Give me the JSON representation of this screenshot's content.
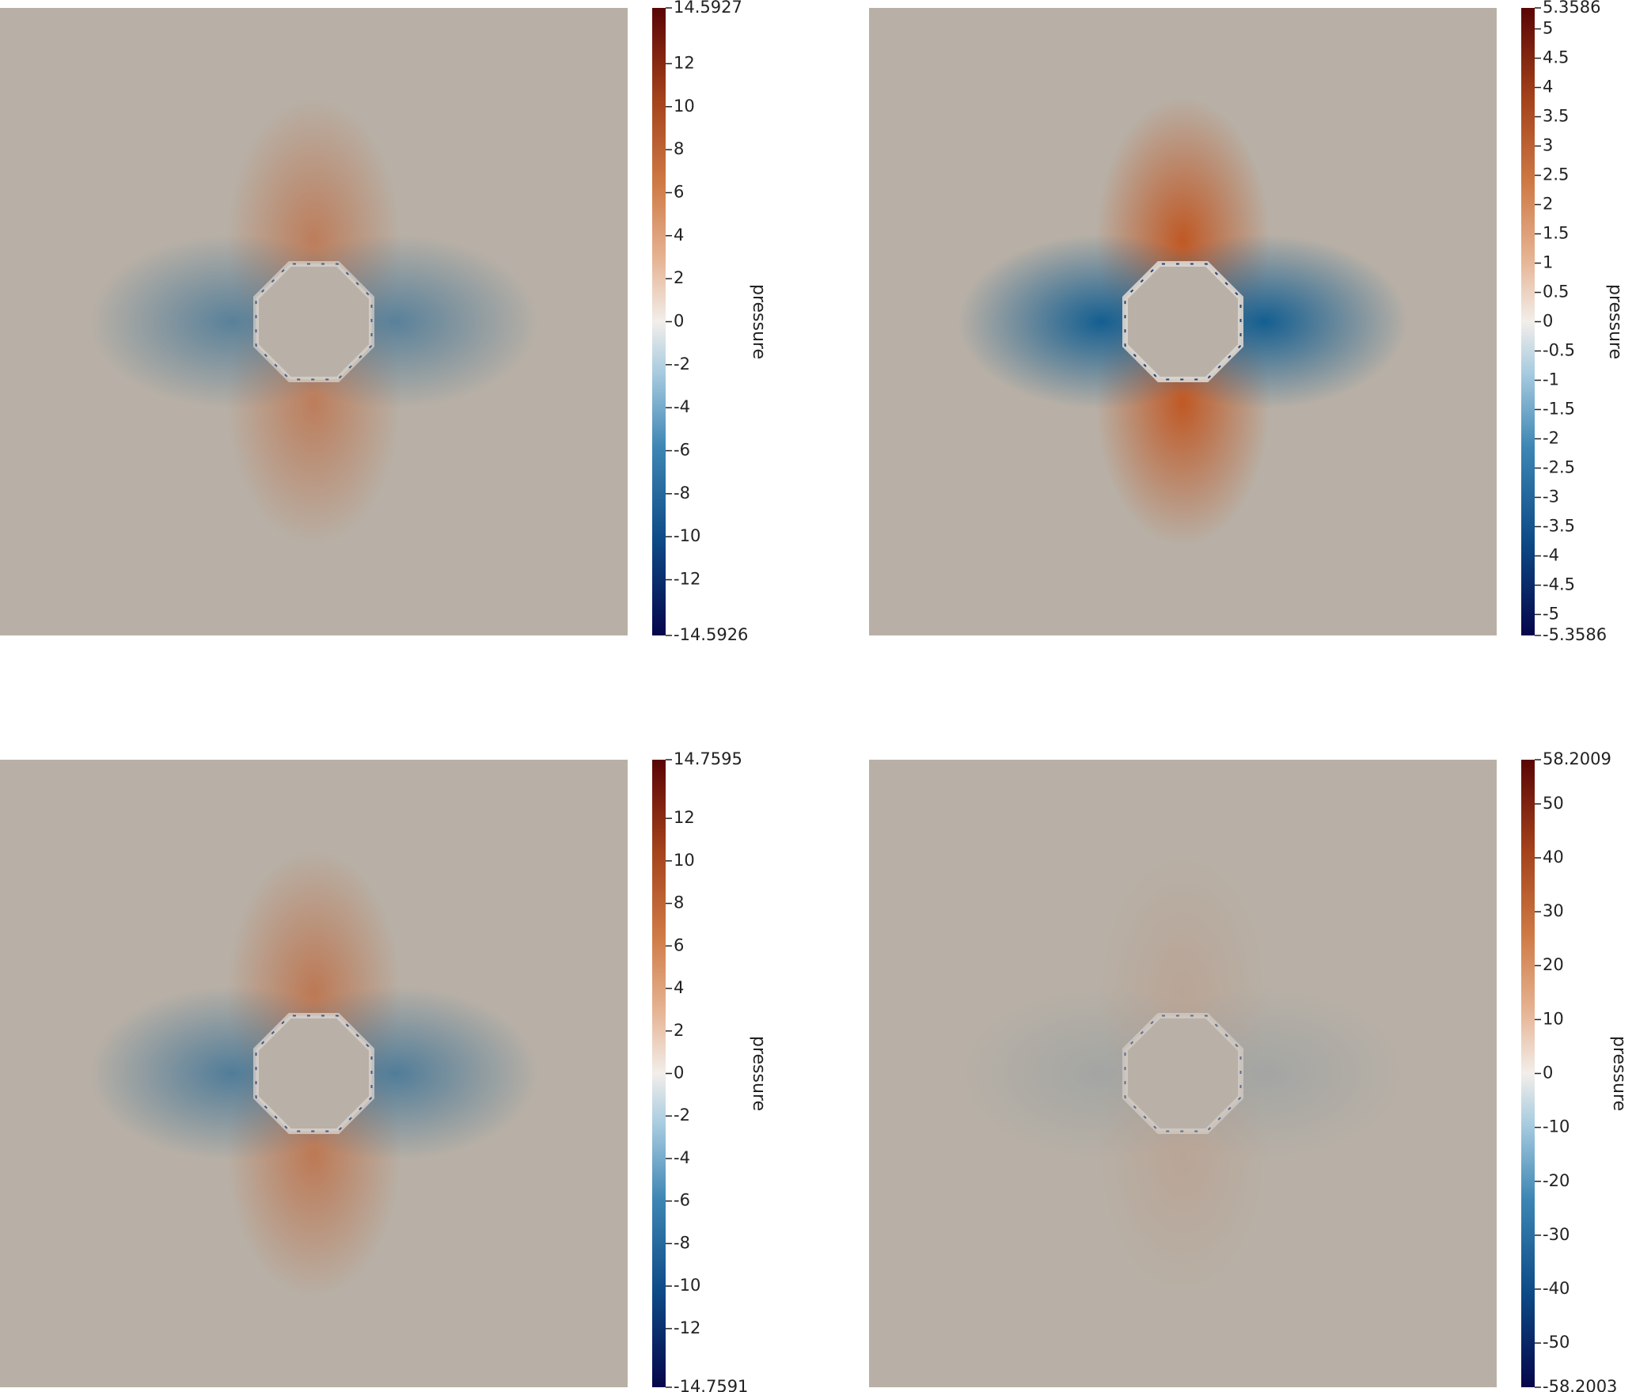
{
  "panels": [
    {
      "colorbar": {
        "title": "pressure",
        "max": 14.5927,
        "min": -14.5926,
        "ticks": [
          12,
          10,
          8,
          6,
          4,
          2,
          0,
          -2,
          -4,
          -6,
          -8,
          -10,
          -12
        ]
      }
    },
    {
      "colorbar": {
        "title": "pressure",
        "max": 5.3586,
        "min": -5.3586,
        "ticks": [
          5,
          4.5,
          4,
          3.5,
          3,
          2.5,
          2,
          1.5,
          1,
          0.5,
          0,
          -0.5,
          -1,
          -1.5,
          -2,
          -2.5,
          -3,
          -3.5,
          -4,
          -4.5,
          -5
        ]
      }
    },
    {
      "colorbar": {
        "title": "pressure",
        "max": 14.7595,
        "min": -14.7591,
        "ticks": [
          12,
          10,
          8,
          6,
          4,
          2,
          0,
          -2,
          -4,
          -6,
          -8,
          -10,
          -12
        ]
      }
    },
    {
      "colorbar": {
        "title": "pressure",
        "max": 58.2009,
        "min": -58.2003,
        "ticks": [
          50,
          40,
          30,
          20,
          10,
          0,
          -10,
          -20,
          -30,
          -40,
          -50
        ]
      }
    }
  ]
}
